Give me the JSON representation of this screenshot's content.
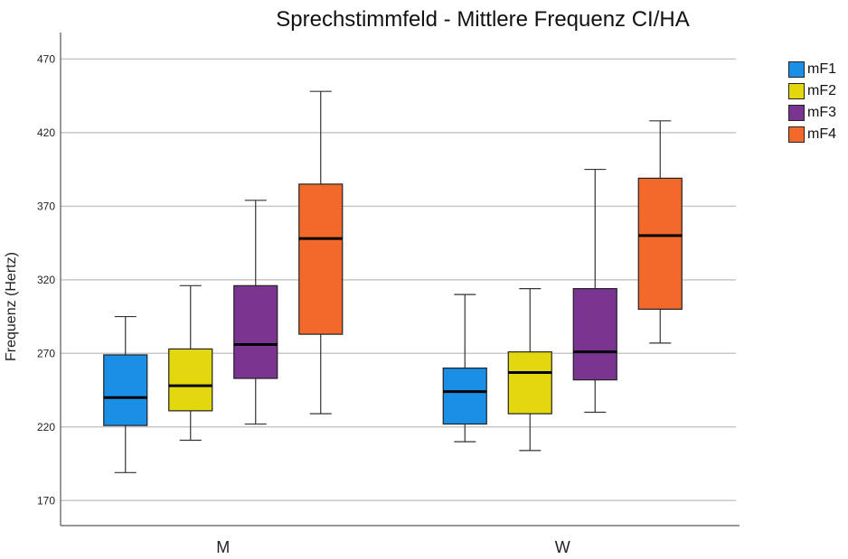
{
  "chart_data": {
    "type": "boxplot",
    "title": "Sprechstimmfeld - Mittlere Frequenz CI/HA",
    "ylabel": "Frequenz (Hertz)",
    "xlabel": "",
    "ylim": [
      153,
      488
    ],
    "yticks": [
      170,
      220,
      270,
      320,
      370,
      420,
      470
    ],
    "categories": [
      "M",
      "W"
    ],
    "grid": "horizontal",
    "legend_position": "right",
    "series": [
      {
        "name": "mF1",
        "color": "#1b8fe6",
        "boxes": [
          {
            "min": 189,
            "q1": 221,
            "median": 240,
            "q3": 269,
            "max": 295
          },
          {
            "min": 210,
            "q1": 222,
            "median": 244,
            "q3": 260,
            "max": 310
          }
        ]
      },
      {
        "name": "mF2",
        "color": "#e3d80e",
        "boxes": [
          {
            "min": 211,
            "q1": 231,
            "median": 248,
            "q3": 273,
            "max": 316
          },
          {
            "min": 204,
            "q1": 229,
            "median": 257,
            "q3": 271,
            "max": 314
          }
        ]
      },
      {
        "name": "mF3",
        "color": "#7a3590",
        "boxes": [
          {
            "min": 222,
            "q1": 253,
            "median": 276,
            "q3": 316,
            "max": 374
          },
          {
            "min": 230,
            "q1": 252,
            "median": 271,
            "q3": 314,
            "max": 395
          }
        ]
      },
      {
        "name": "mF4",
        "color": "#f2692b",
        "boxes": [
          {
            "min": 229,
            "q1": 283,
            "median": 348,
            "q3": 385,
            "max": 448
          },
          {
            "min": 277,
            "q1": 300,
            "median": 350,
            "q3": 389,
            "max": 428
          }
        ]
      }
    ]
  }
}
